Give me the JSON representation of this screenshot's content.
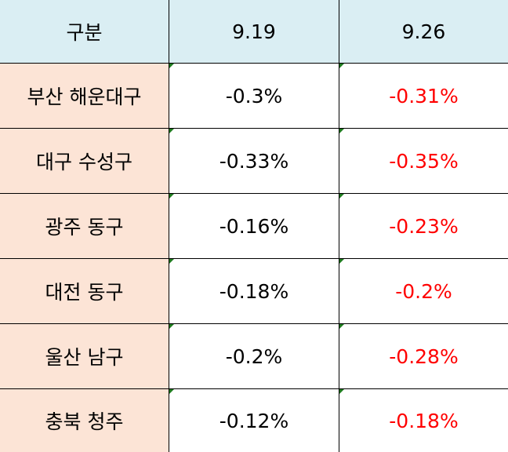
{
  "table": {
    "header": [
      "구분",
      "9.19",
      "9.26"
    ],
    "rows": [
      [
        "부산 해운대구",
        "-0.3%",
        "-0.31%"
      ],
      [
        "대구 수성구",
        "-0.33%",
        "-0.35%"
      ],
      [
        "광주 동구",
        "-0.16%",
        "-0.23%"
      ],
      [
        "대전 동구",
        "-0.18%",
        "-0.2%"
      ],
      [
        "울산 남구",
        "-0.2%",
        "-0.28%"
      ],
      [
        "충북 청주",
        "-0.12%",
        "-0.18%"
      ]
    ]
  }
}
